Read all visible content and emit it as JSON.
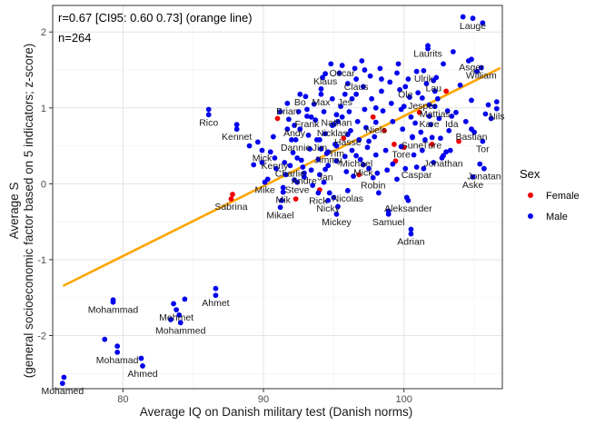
{
  "chart_data": {
    "type": "scatter",
    "title": "",
    "xlabel": "Average IQ on Danish military test (Danish norms)",
    "ylabel_line1": "Average S",
    "ylabel_line2": "(general socioeconomic factor based on 5 indicators; z-score)",
    "xlim": [
      75,
      107
    ],
    "ylim": [
      -2.7,
      2.35
    ],
    "x_ticks": [
      80,
      90,
      100
    ],
    "y_ticks": [
      -2,
      -1,
      0,
      1,
      2
    ],
    "x_tick_labels": [
      "80",
      "90",
      "100"
    ],
    "y_tick_labels": [
      "-2",
      "-1",
      "0",
      "1",
      "2"
    ],
    "grid": true,
    "annotations": [
      "r=0.67 [CI95: 0.60 0.73] (orange line)",
      "n=264"
    ],
    "regression_line": {
      "color": "#ffa500",
      "x": [
        75.8,
        106.8
      ],
      "y": [
        -1.34,
        1.52
      ]
    },
    "legend": {
      "title": "Sex",
      "placement": "right",
      "entries": [
        {
          "label": "Female",
          "color": "#e41a1c"
        },
        {
          "label": "Male",
          "color": "#0000ff"
        }
      ]
    },
    "colors": {
      "Female": "#ee0000",
      "Male": "#0000ee"
    },
    "labeled_points": [
      {
        "label": "Lauge",
        "x": 104.9,
        "y": 2.18,
        "sex": "Male"
      },
      {
        "label": "Laurits",
        "x": 101.7,
        "y": 1.82,
        "sex": "Male"
      },
      {
        "label": "Asger",
        "x": 104.8,
        "y": 1.64,
        "sex": "Male"
      },
      {
        "label": "William",
        "x": 105.5,
        "y": 1.53,
        "sex": "Male"
      },
      {
        "label": "Oscar",
        "x": 95.6,
        "y": 1.56,
        "sex": "Male"
      },
      {
        "label": "Ulrik",
        "x": 101.4,
        "y": 1.49,
        "sex": "Male"
      },
      {
        "label": "Klaus",
        "x": 94.4,
        "y": 1.45,
        "sex": "Male"
      },
      {
        "label": "Claus",
        "x": 96.6,
        "y": 1.38,
        "sex": "Male"
      },
      {
        "label": "Lau",
        "x": 102.1,
        "y": 1.36,
        "sex": "Male"
      },
      {
        "label": "Ole",
        "x": 100.1,
        "y": 1.28,
        "sex": "Male"
      },
      {
        "label": "Bo",
        "x": 92.6,
        "y": 1.18,
        "sex": "Male"
      },
      {
        "label": "Max",
        "x": 94.1,
        "y": 1.18,
        "sex": "Male"
      },
      {
        "label": "Jes",
        "x": 95.8,
        "y": 1.18,
        "sex": "Male"
      },
      {
        "label": "Jesper",
        "x": 101.3,
        "y": 1.13,
        "sex": "Male"
      },
      {
        "label": "Brian",
        "x": 91.7,
        "y": 1.06,
        "sex": "Male"
      },
      {
        "label": "Mattias",
        "x": 102.2,
        "y": 1.02,
        "sex": "Male"
      },
      {
        "label": "Nils",
        "x": 106.6,
        "y": 0.99,
        "sex": "Male"
      },
      {
        "label": "Rico",
        "x": 86.1,
        "y": 0.91,
        "sex": "Male"
      },
      {
        "label": "Frank",
        "x": 93.1,
        "y": 0.89,
        "sex": "Male"
      },
      {
        "label": "Nathan",
        "x": 95.2,
        "y": 0.91,
        "sex": "Male"
      },
      {
        "label": "Kare",
        "x": 101.8,
        "y": 0.89,
        "sex": "Male"
      },
      {
        "label": "Ida",
        "x": 103.4,
        "y": 0.89,
        "sex": "Male"
      },
      {
        "label": "Andy",
        "x": 92.2,
        "y": 0.77,
        "sex": "Male"
      },
      {
        "label": "Nicklas",
        "x": 94.9,
        "y": 0.77,
        "sex": "Male"
      },
      {
        "label": "Niels",
        "x": 98.0,
        "y": 0.81,
        "sex": "Male"
      },
      {
        "label": "Kennet",
        "x": 88.1,
        "y": 0.72,
        "sex": "Male"
      },
      {
        "label": "Bastian",
        "x": 104.8,
        "y": 0.72,
        "sex": "Male"
      },
      {
        "label": "Hasse",
        "x": 96.0,
        "y": 0.65,
        "sex": "Male"
      },
      {
        "label": "Sune",
        "x": 100.6,
        "y": 0.61,
        "sex": "Male"
      },
      {
        "label": "Ture",
        "x": 102.0,
        "y": 0.61,
        "sex": "Male"
      },
      {
        "label": "Dannie",
        "x": 92.3,
        "y": 0.58,
        "sex": "Male"
      },
      {
        "label": "Jim",
        "x": 94.0,
        "y": 0.58,
        "sex": "Male"
      },
      {
        "label": "Tor",
        "x": 105.6,
        "y": 0.56,
        "sex": "Male"
      },
      {
        "label": "Tim",
        "x": 95.2,
        "y": 0.5,
        "sex": "Male"
      },
      {
        "label": "Tore",
        "x": 99.8,
        "y": 0.49,
        "sex": "Male"
      },
      {
        "label": "Mick",
        "x": 89.9,
        "y": 0.44,
        "sex": "Male"
      },
      {
        "label": "Jimmy",
        "x": 94.6,
        "y": 0.42,
        "sex": "Male"
      },
      {
        "label": "Michael",
        "x": 96.6,
        "y": 0.37,
        "sex": "Male"
      },
      {
        "label": "Jonathan",
        "x": 102.8,
        "y": 0.37,
        "sex": "Male"
      },
      {
        "label": "Kenny",
        "x": 90.8,
        "y": 0.34,
        "sex": "Male"
      },
      {
        "label": "Charlie",
        "x": 91.9,
        "y": 0.24,
        "sex": "Male"
      },
      {
        "label": "Mick",
        "x": 97.1,
        "y": 0.25,
        "sex": "Male"
      },
      {
        "label": "Caspar",
        "x": 100.9,
        "y": 0.22,
        "sex": "Male"
      },
      {
        "label": "Jonatan",
        "x": 105.7,
        "y": 0.2,
        "sex": "Male"
      },
      {
        "label": "Andre",
        "x": 92.9,
        "y": 0.14,
        "sex": "Male"
      },
      {
        "label": "Jan",
        "x": 94.4,
        "y": 0.19,
        "sex": "Male"
      },
      {
        "label": "Aske",
        "x": 104.9,
        "y": 0.09,
        "sex": "Male"
      },
      {
        "label": "Robin",
        "x": 97.8,
        "y": 0.08,
        "sex": "Male"
      },
      {
        "label": "Mike",
        "x": 90.1,
        "y": 0.02,
        "sex": "Male"
      },
      {
        "label": "Steve",
        "x": 92.4,
        "y": 0.02,
        "sex": "Male"
      },
      {
        "label": "Mik",
        "x": 91.4,
        "y": -0.11,
        "sex": "Male"
      },
      {
        "label": "Rick",
        "x": 93.9,
        "y": -0.12,
        "sex": "Male"
      },
      {
        "label": "Nicolas",
        "x": 96.0,
        "y": -0.09,
        "sex": "Male"
      },
      {
        "label": "Sabrina",
        "x": 87.7,
        "y": -0.2,
        "sex": "Female"
      },
      {
        "label": "Nicky",
        "x": 94.6,
        "y": -0.22,
        "sex": "Male"
      },
      {
        "label": "Aleksander",
        "x": 100.3,
        "y": -0.22,
        "sex": "Male"
      },
      {
        "label": "Mikael",
        "x": 91.2,
        "y": -0.31,
        "sex": "Male"
      },
      {
        "label": "Mickey",
        "x": 95.2,
        "y": -0.4,
        "sex": "Male"
      },
      {
        "label": "Samuel",
        "x": 98.9,
        "y": -0.4,
        "sex": "Male"
      },
      {
        "label": "Adrian",
        "x": 100.5,
        "y": -0.66,
        "sex": "Male"
      },
      {
        "label": "Ahmet",
        "x": 86.6,
        "y": -1.47,
        "sex": "Male"
      },
      {
        "label": "Mohammad",
        "x": 79.3,
        "y": -1.56,
        "sex": "Male"
      },
      {
        "label": "Mehmet",
        "x": 83.8,
        "y": -1.66,
        "sex": "Male"
      },
      {
        "label": "Mohammed",
        "x": 84.1,
        "y": -1.83,
        "sex": "Male"
      },
      {
        "label": "Mohamad",
        "x": 79.6,
        "y": -2.22,
        "sex": "Male"
      },
      {
        "label": "Ahmed",
        "x": 81.4,
        "y": -2.4,
        "sex": "Male"
      },
      {
        "label": "Mohamed",
        "x": 75.7,
        "y": -2.63,
        "sex": "Male"
      }
    ],
    "points": [
      [
        75.8,
        -2.55,
        "M"
      ],
      [
        78.7,
        -2.05,
        "M"
      ],
      [
        79.6,
        -2.14,
        "M"
      ],
      [
        81.3,
        -2.3,
        "M"
      ],
      [
        79.3,
        -1.53,
        "M"
      ],
      [
        83.4,
        -1.79,
        "M"
      ],
      [
        84.0,
        -1.73,
        "M"
      ],
      [
        83.6,
        -1.58,
        "M"
      ],
      [
        84.4,
        -1.52,
        "M"
      ],
      [
        86.6,
        -1.38,
        "M"
      ],
      [
        87.8,
        -0.14,
        "F"
      ],
      [
        86.1,
        0.98,
        "M"
      ],
      [
        88.1,
        0.78,
        "M"
      ],
      [
        89.0,
        0.5,
        "M"
      ],
      [
        89.6,
        0.55,
        "M"
      ],
      [
        89.3,
        0.25,
        "M"
      ],
      [
        89.9,
        0.28,
        "M"
      ],
      [
        90.5,
        0.42,
        "M"
      ],
      [
        90.3,
        0.06,
        "M"
      ],
      [
        90.7,
        0.62,
        "M"
      ],
      [
        91.0,
        0.86,
        "F"
      ],
      [
        91.2,
        0.95,
        "M"
      ],
      [
        91.5,
        0.28,
        "M"
      ],
      [
        91.6,
        0.12,
        "M"
      ],
      [
        91.4,
        -0.05,
        "M"
      ],
      [
        91.3,
        -0.22,
        "M"
      ],
      [
        91.8,
        0.85,
        "M"
      ],
      [
        92.0,
        0.58,
        "M"
      ],
      [
        92.1,
        0.41,
        "M"
      ],
      [
        92.2,
        0.05,
        "M"
      ],
      [
        92.3,
        -0.2,
        "F"
      ],
      [
        92.5,
        0.95,
        "M"
      ],
      [
        92.6,
        0.72,
        "M"
      ],
      [
        92.7,
        0.31,
        "M"
      ],
      [
        92.8,
        0.22,
        "M"
      ],
      [
        92.9,
        0.09,
        "M"
      ],
      [
        93.0,
        1.15,
        "M"
      ],
      [
        93.1,
        0.98,
        "M"
      ],
      [
        93.2,
        0.64,
        "M"
      ],
      [
        93.3,
        0.46,
        "M"
      ],
      [
        93.4,
        0.18,
        "M"
      ],
      [
        93.5,
        -0.02,
        "M"
      ],
      [
        93.6,
        1.05,
        "M"
      ],
      [
        93.7,
        0.84,
        "M"
      ],
      [
        93.8,
        0.58,
        "M"
      ],
      [
        93.9,
        0.32,
        "M"
      ],
      [
        94.0,
        0.12,
        "M"
      ],
      [
        94.0,
        -0.08,
        "F"
      ],
      [
        94.1,
        1.25,
        "M"
      ],
      [
        94.2,
        1.4,
        "M"
      ],
      [
        94.3,
        0.95,
        "M"
      ],
      [
        94.4,
        0.66,
        "M"
      ],
      [
        94.5,
        0.4,
        "M"
      ],
      [
        94.6,
        0.24,
        "M"
      ],
      [
        94.7,
        -0.12,
        "M"
      ],
      [
        94.8,
        1.58,
        "M"
      ],
      [
        94.9,
        1.12,
        "M"
      ],
      [
        95.0,
        0.78,
        "M"
      ],
      [
        95.1,
        0.52,
        "M"
      ],
      [
        95.2,
        0.3,
        "M"
      ],
      [
        95.3,
        -0.3,
        "M"
      ],
      [
        95.4,
        1.46,
        "M"
      ],
      [
        95.5,
        1.02,
        "M"
      ],
      [
        95.6,
        0.88,
        "M"
      ],
      [
        95.7,
        0.6,
        "F"
      ],
      [
        95.8,
        0.36,
        "M"
      ],
      [
        95.9,
        0.16,
        "M"
      ],
      [
        96.0,
        1.32,
        "M"
      ],
      [
        96.1,
        0.95,
        "M"
      ],
      [
        96.2,
        0.7,
        "M"
      ],
      [
        96.3,
        0.44,
        "M"
      ],
      [
        96.4,
        0.1,
        "M"
      ],
      [
        96.5,
        1.52,
        "M"
      ],
      [
        96.6,
        1.18,
        "M"
      ],
      [
        96.7,
        0.82,
        "M"
      ],
      [
        96.8,
        0.58,
        "M"
      ],
      [
        96.9,
        0.32,
        "M"
      ],
      [
        97.0,
        1.62,
        "M"
      ],
      [
        97.1,
        1.28,
        "M"
      ],
      [
        97.2,
        0.98,
        "M"
      ],
      [
        97.3,
        0.74,
        "M"
      ],
      [
        97.4,
        0.48,
        "M"
      ],
      [
        97.5,
        0.2,
        "M"
      ],
      [
        97.6,
        1.42,
        "M"
      ],
      [
        97.7,
        1.12,
        "M"
      ],
      [
        97.8,
        0.88,
        "F"
      ],
      [
        97.9,
        0.62,
        "M"
      ],
      [
        98.0,
        0.38,
        "M"
      ],
      [
        98.1,
        0.14,
        "M"
      ],
      [
        98.2,
        -0.12,
        "M"
      ],
      [
        98.3,
        1.52,
        "M"
      ],
      [
        98.4,
        1.22,
        "M"
      ],
      [
        98.5,
        0.96,
        "M"
      ],
      [
        98.6,
        0.7,
        "F"
      ],
      [
        98.7,
        0.44,
        "M"
      ],
      [
        98.8,
        0.18,
        "M"
      ],
      [
        98.9,
        -0.36,
        "M"
      ],
      [
        99.0,
        1.34,
        "M"
      ],
      [
        99.1,
        1.06,
        "M"
      ],
      [
        99.2,
        0.82,
        "M"
      ],
      [
        99.3,
        0.52,
        "F"
      ],
      [
        99.4,
        0.3,
        "F"
      ],
      [
        99.5,
        0.06,
        "M"
      ],
      [
        99.6,
        1.58,
        "M"
      ],
      [
        99.7,
        1.24,
        "M"
      ],
      [
        99.8,
        0.98,
        "M"
      ],
      [
        99.9,
        0.72,
        "M"
      ],
      [
        100.0,
        0.48,
        "F"
      ],
      [
        100.1,
        0.2,
        "M"
      ],
      [
        100.2,
        -0.18,
        "M"
      ],
      [
        100.3,
        1.38,
        "M"
      ],
      [
        100.4,
        1.14,
        "M"
      ],
      [
        100.5,
        0.88,
        "M"
      ],
      [
        100.6,
        0.62,
        "M"
      ],
      [
        100.7,
        0.38,
        "M"
      ],
      [
        100.5,
        -0.6,
        "M"
      ],
      [
        100.9,
        1.48,
        "M"
      ],
      [
        101.0,
        1.2,
        "M"
      ],
      [
        101.1,
        0.94,
        "F"
      ],
      [
        101.2,
        0.68,
        "M"
      ],
      [
        101.3,
        0.44,
        "M"
      ],
      [
        101.4,
        0.2,
        "M"
      ],
      [
        101.6,
        1.32,
        "M"
      ],
      [
        101.7,
        1.78,
        "M"
      ],
      [
        101.8,
        1.04,
        "M"
      ],
      [
        101.9,
        0.78,
        "M"
      ],
      [
        102.0,
        0.52,
        "F"
      ],
      [
        102.1,
        0.28,
        "M"
      ],
      [
        102.3,
        1.4,
        "M"
      ],
      [
        102.4,
        1.12,
        "M"
      ],
      [
        102.5,
        0.86,
        "M"
      ],
      [
        102.6,
        0.6,
        "M"
      ],
      [
        102.7,
        0.34,
        "M"
      ],
      [
        102.8,
        1.58,
        "M"
      ],
      [
        103.0,
        1.22,
        "F"
      ],
      [
        103.1,
        0.96,
        "M"
      ],
      [
        103.2,
        0.7,
        "M"
      ],
      [
        103.3,
        0.44,
        "M"
      ],
      [
        103.5,
        1.74,
        "M"
      ],
      [
        103.7,
        0.94,
        "M"
      ],
      [
        103.9,
        0.56,
        "F"
      ],
      [
        104.0,
        1.3,
        "M"
      ],
      [
        104.2,
        2.2,
        "M"
      ],
      [
        104.4,
        0.82,
        "M"
      ],
      [
        104.6,
        1.62,
        "M"
      ],
      [
        104.8,
        1.1,
        "M"
      ],
      [
        105.0,
        0.68,
        "M"
      ],
      [
        105.2,
        1.48,
        "M"
      ],
      [
        105.4,
        0.26,
        "M"
      ],
      [
        105.6,
        2.12,
        "M"
      ],
      [
        105.8,
        0.92,
        "M"
      ],
      [
        106.0,
        1.04,
        "M"
      ],
      [
        106.2,
        0.86,
        "M"
      ],
      [
        106.6,
        1.08,
        "M"
      ],
      [
        90.9,
        0.2,
        "M"
      ],
      [
        91.7,
        0.72,
        "M"
      ],
      [
        93.4,
        0.88,
        "M"
      ],
      [
        94.3,
        0.02,
        "M"
      ],
      [
        95.0,
        -0.18,
        "M"
      ],
      [
        96.3,
        1.12,
        "M"
      ],
      [
        97.5,
        0.56,
        "M"
      ],
      [
        98.4,
        1.38,
        "M"
      ],
      [
        99.2,
        0.26,
        "M"
      ],
      [
        100.0,
        1.02,
        "M"
      ],
      [
        100.8,
        0.8,
        "M"
      ],
      [
        101.5,
        0.58,
        "M"
      ],
      [
        102.2,
        1.22,
        "M"
      ],
      [
        103.0,
        0.42,
        "M"
      ],
      [
        96.8,
        0.12,
        "F"
      ],
      [
        95.3,
        0.82,
        "M"
      ],
      [
        94.1,
        0.46,
        "M"
      ],
      [
        92.4,
        0.34,
        "M"
      ],
      [
        98.0,
        1.0,
        "M"
      ],
      [
        99.5,
        1.46,
        "M"
      ],
      [
        97.2,
        1.5,
        "M"
      ]
    ]
  }
}
